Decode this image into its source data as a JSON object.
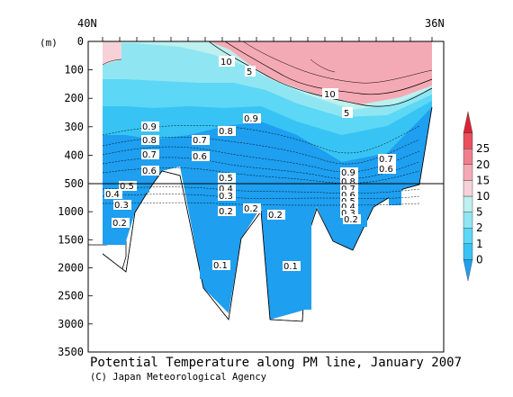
{
  "chart_data": {
    "type": "contour",
    "title": "Potential Temperature along PM line, January 2007",
    "credit": "(C) Japan Meteorological Agency",
    "x_labels": {
      "left": "40N",
      "right": "36N"
    },
    "y_unit": "(m)",
    "y_ticks": [
      0,
      100,
      200,
      300,
      400,
      500,
      1000,
      1500,
      2000,
      2500,
      3000,
      3500
    ],
    "y_scale_break": 500,
    "colorbar": {
      "ticks": [
        "0",
        "1",
        "2",
        "5",
        "10",
        "15",
        "20",
        "25"
      ],
      "colors": [
        "#1e9ff0",
        "#37c4f4",
        "#5cd7f5",
        "#8fe6f2",
        "#bdf0ee",
        "#f6d2d8",
        "#f4aab4",
        "#ee7f8c",
        "#e8505e",
        "#dd2233"
      ]
    },
    "contour_labels": [
      "10",
      "5",
      "10",
      "5",
      "0.9",
      "0.9",
      "0.8",
      "0.8",
      "0.7",
      "0.7",
      "0.6",
      "0.6",
      "0.5",
      "0.5",
      "0.4",
      "0.4",
      "0.3",
      "0.3",
      "0.2",
      "0.2",
      "0.2",
      "0.2",
      "0.1",
      "0.1",
      "0.9",
      "0.8",
      "0.7",
      "0.6",
      "0.5",
      "0.4",
      "0.3",
      "0.2",
      "0.7",
      "0.6"
    ],
    "series_note": "Filled contour of potential temperature (°C) versus depth along the PM line."
  }
}
